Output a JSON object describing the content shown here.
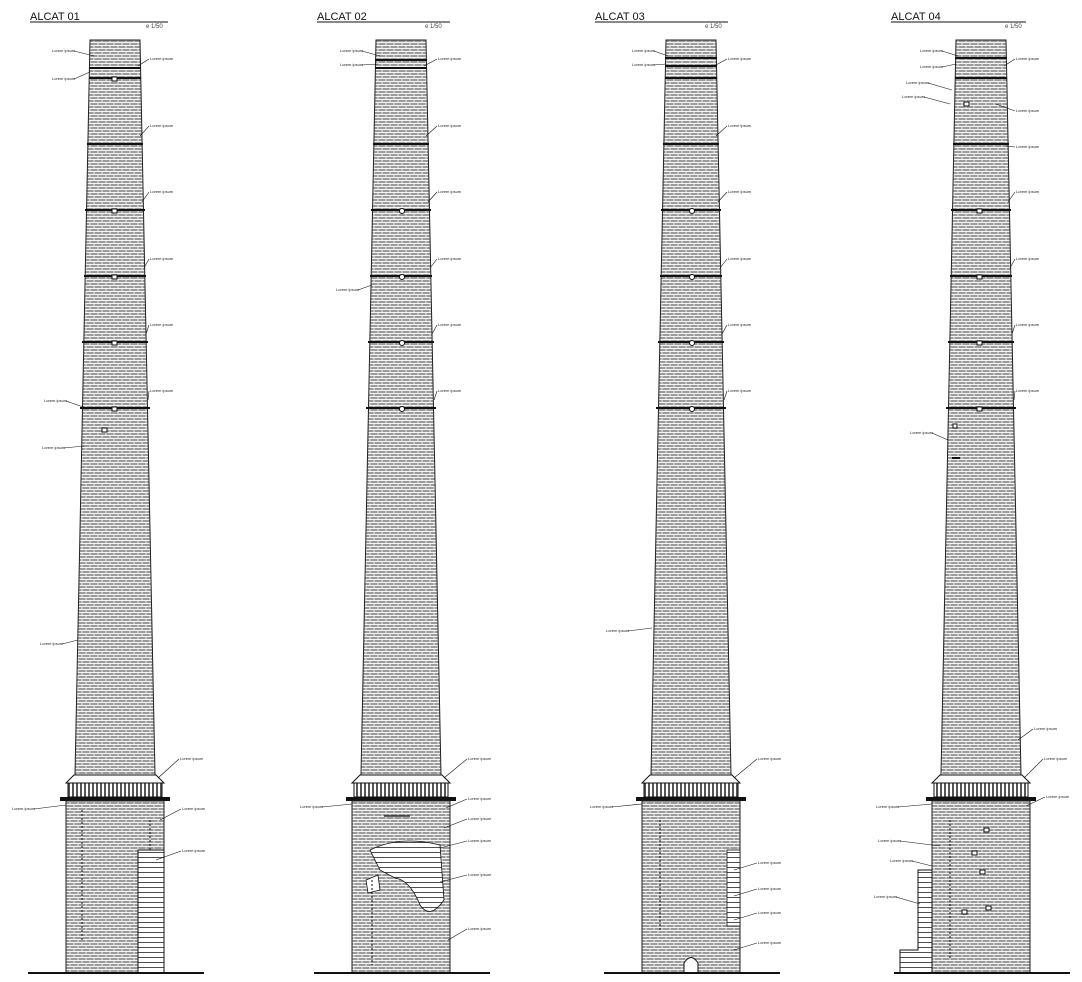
{
  "drawings": [
    {
      "title": "ALCAT 01",
      "scale": "e 1/50",
      "labels": [
        "Lorem ipsum",
        "Lorem ipsum",
        "Lorem ipsum",
        "Lorem ipsum",
        "Lorem ipsum",
        "Lorem ipsum",
        "Lorem ipsum",
        "Lorem ipsum",
        "Lorem ipsum",
        "Lorem ipsum",
        "Lorem ipsum",
        "Lorem ipsum",
        "Lorem ipsum",
        "Lorem ipsum",
        "Lorem ipsum"
      ]
    },
    {
      "title": "ALCAT 02",
      "scale": "e 1/50",
      "labels": [
        "Lorem ipsum",
        "Lorem ipsum",
        "Lorem ipsum",
        "Lorem ipsum",
        "Lorem ipsum",
        "Lorem ipsum",
        "Lorem ipsum",
        "Lorem ipsum",
        "Lorem ipsum",
        "Lorem ipsum",
        "Lorem ipsum",
        "Lorem ipsum",
        "Lorem ipsum",
        "Lorem ipsum",
        "Lorem ipsum",
        "Lorem ipsum"
      ]
    },
    {
      "title": "ALCAT 03",
      "scale": "e 1/50",
      "labels": [
        "Lorem ipsum",
        "Lorem ipsum",
        "Lorem ipsum",
        "Lorem ipsum",
        "Lorem ipsum",
        "Lorem ipsum",
        "Lorem ipsum",
        "Lorem ipsum",
        "Lorem ipsum",
        "Lorem ipsum",
        "Lorem ipsum",
        "Lorem ipsum",
        "Lorem ipsum",
        "Lorem ipsum",
        "Lorem ipsum"
      ]
    },
    {
      "title": "ALCAT 04",
      "scale": "e 1/50",
      "labels": [
        "Lorem ipsum",
        "Lorem ipsum",
        "Lorem ipsum",
        "Lorem ipsum",
        "Lorem ipsum",
        "Lorem ipsum",
        "Lorem ipsum",
        "Lorem ipsum",
        "Lorem ipsum",
        "Lorem ipsum",
        "Lorem ipsum",
        "Lorem ipsum",
        "Lorem ipsum",
        "Lorem ipsum",
        "Lorem ipsum",
        "Lorem ipsum",
        "Lorem ipsum",
        "Lorem ipsum",
        "Lorem ipsum"
      ]
    }
  ],
  "colors": {
    "line": "#111111",
    "hatch": "#8a8a8a",
    "paper": "#ffffff"
  }
}
